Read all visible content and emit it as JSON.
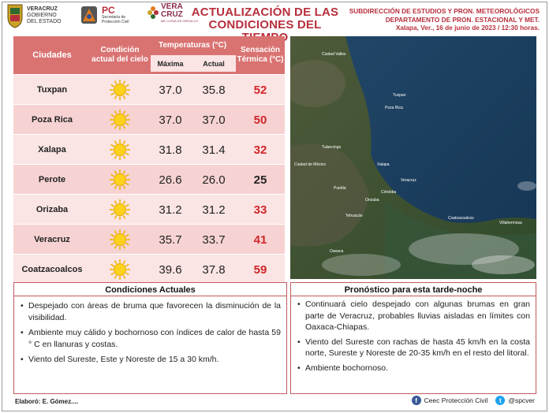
{
  "header": {
    "logo_veracruz": [
      "VERACRUZ",
      "GOBIERNO",
      "DEL ESTADO"
    ],
    "logo_pc": [
      "PC",
      "Secretaría de",
      "Protección Civil"
    ],
    "logo_vera": [
      "VERA",
      "CRUZ",
      "ME LLENA DE ORGULLO"
    ],
    "title": [
      "ACTUALIZACIÓN DE LAS",
      "CONDICIONES DEL TIEMPO"
    ],
    "subtitle": [
      "SUBDIRECCIÓN DE ESTUDIOS Y PRON. METEOROLÓGICOS",
      "DEPARTAMENTO DE PRON.  ESTACIONAL Y MET.",
      "Xalapa, Ver., 16 de junio de 2023 / 12:30 horas."
    ]
  },
  "table": {
    "headers": {
      "city": "Ciudades",
      "condition": "Condición actual del cielo",
      "temperatures": "Temperaturas (°C)",
      "max": "Máxima",
      "current": "Actual",
      "sensation": "Sensación Térmica (°C)"
    },
    "rows": [
      {
        "city": "Tuxpan",
        "condition_icon": "sun-icon",
        "max": "37.0",
        "current": "35.8",
        "sensation": "52",
        "hot": true
      },
      {
        "city": "Poza Rica",
        "condition_icon": "sun-icon",
        "max": "37.0",
        "current": "37.0",
        "sensation": "50",
        "hot": true
      },
      {
        "city": "Xalapa",
        "condition_icon": "sun-icon",
        "max": "31.8",
        "current": "31.4",
        "sensation": "32",
        "hot": true
      },
      {
        "city": "Perote",
        "condition_icon": "sun-icon",
        "max": "26.6",
        "current": "26.0",
        "sensation": "25",
        "hot": false
      },
      {
        "city": "Orizaba",
        "condition_icon": "sun-icon",
        "max": "31.2",
        "current": "31.2",
        "sensation": "33",
        "hot": true
      },
      {
        "city": "Veracruz",
        "condition_icon": "sun-icon",
        "max": "35.7",
        "current": "33.7",
        "sensation": "41",
        "hot": true
      },
      {
        "city": "Coatzacoalcos",
        "condition_icon": "sun-icon",
        "max": "39.6",
        "current": "37.8",
        "sensation": "59",
        "hot": true
      }
    ]
  },
  "map": {
    "places": [
      "Tuxpan",
      "Poza Rica",
      "Ciudad Valles",
      "Tulancingo",
      "Ciudad de México",
      "Puebla",
      "Xalapa",
      "Veracruz",
      "Córdoba",
      "Orizaba",
      "Tehuacán",
      "Coatzacoalcos",
      "Villahermosa",
      "Oaxaca"
    ]
  },
  "current_conditions": {
    "title": "Condiciones Actuales",
    "items": [
      "Despejado con áreas de bruma que favorecen la disminución de la visibilidad.",
      "Ambiente muy cálido y bochornoso con índices de calor de hasta 59 ° C en llanuras y costas.",
      "Viento del Sureste, Este y Noreste de 15 a  30 km/h."
    ]
  },
  "forecast": {
    "title": "Pronóstico para esta tarde-noche",
    "items": [
      "Continuará cielo despejado con algunas brumas en gran parte de Veracruz, probables lluvias aisladas en límites con Oaxaca-Chiapas.",
      "Viento del Sureste con rachas de hasta 45 km/h en la costa norte, Sureste y Noreste de 20-35 km/h en el resto del litoral.",
      "Ambiente bochornoso."
    ]
  },
  "footer": {
    "author": "Elaboró: E. Gómez....",
    "facebook": "Ceec Protección Civil",
    "twitter": "@spcver"
  },
  "colors": {
    "title_red": "#b72f3c",
    "header_bg": "#d97372",
    "row_light": "#fbe4e4",
    "row_dark": "#f6d3d2",
    "hot_value": "#d0262a"
  }
}
